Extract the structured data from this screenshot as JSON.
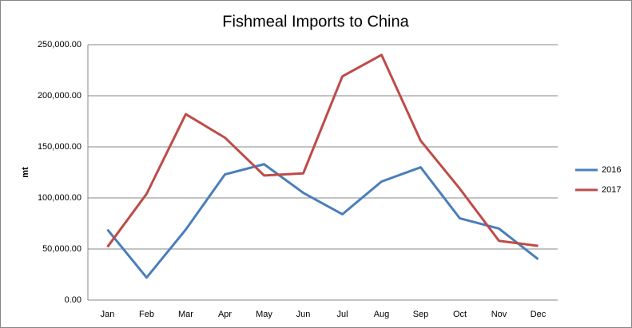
{
  "chart_data": {
    "type": "line",
    "title": "Fishmeal Imports to China",
    "y_label": "mt",
    "categories": [
      "Jan",
      "Feb",
      "Mar",
      "Apr",
      "May",
      "Jun",
      "Jul",
      "Aug",
      "Sep",
      "Oct",
      "Nov",
      "Dec"
    ],
    "series": [
      {
        "name": "2016",
        "color": "#4a7ebb",
        "values": [
          69000,
          22000,
          69000,
          123000,
          133000,
          105000,
          84000,
          116000,
          130000,
          80000,
          70000,
          40000
        ]
      },
      {
        "name": "2017",
        "color": "#be4b48",
        "values": [
          52000,
          104000,
          182000,
          159000,
          122000,
          124000,
          219000,
          240000,
          156000,
          109000,
          58000,
          53000
        ]
      }
    ],
    "ylim": [
      0,
      250000
    ],
    "yticks": [
      {
        "value": 0,
        "label": "0.00"
      },
      {
        "value": 50000,
        "label": "50,000.00"
      },
      {
        "value": 100000,
        "label": "100,000.00"
      },
      {
        "value": 150000,
        "label": "150,000.00"
      },
      {
        "value": 200000,
        "label": "200,000.00"
      },
      {
        "value": 250000,
        "label": "250,000.00"
      }
    ],
    "grid": true,
    "legend": "right"
  }
}
